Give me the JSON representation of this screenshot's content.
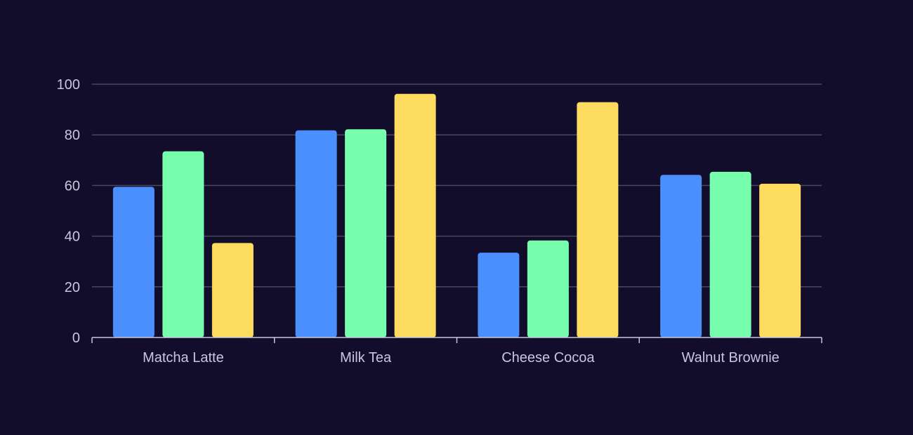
{
  "colors": {
    "background": "#110d2a",
    "grid": "#4a4760",
    "axis": "#c9c6de",
    "text": "#c9c6de"
  },
  "chart_data": {
    "type": "bar",
    "title": "",
    "xlabel": "",
    "ylabel": "",
    "categories": [
      "Matcha Latte",
      "Milk Tea",
      "Cheese Cocoa",
      "Walnut Brownie"
    ],
    "series": [
      {
        "color": "#4b8ffd",
        "values": [
          59.5,
          81.8,
          33.5,
          64.2
        ]
      },
      {
        "color": "#78ffad",
        "values": [
          73.5,
          82.2,
          38.3,
          65.4
        ]
      },
      {
        "color": "#fcdb5f",
        "values": [
          37.3,
          96.2,
          92.9,
          60.7
        ]
      }
    ],
    "ylim": [
      0,
      100
    ],
    "yticks": [
      0,
      20,
      40,
      60,
      80,
      100
    ],
    "grid": true,
    "legend": "none"
  }
}
